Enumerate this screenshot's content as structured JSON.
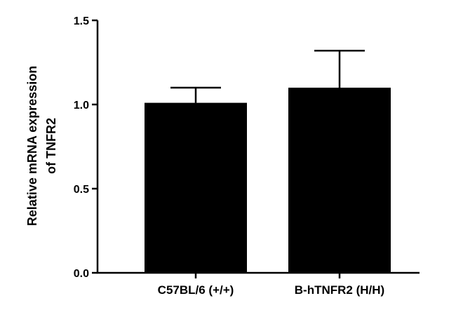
{
  "chart_data": {
    "type": "bar",
    "title": "",
    "xlabel": "",
    "ylabel_lines": [
      "Relative mRNA expression",
      "of TNFR2"
    ],
    "categories": [
      "C57BL/6 (+/+)",
      "B-hTNFR2 (H/H)"
    ],
    "values": [
      1.01,
      1.1
    ],
    "error_upper": [
      0.09,
      0.22
    ],
    "ylim": [
      0,
      1.5
    ],
    "yticks": [
      0.0,
      0.5,
      1.0,
      1.5
    ],
    "ytick_labels": [
      "0.0",
      "0.5",
      "1.0",
      "1.5"
    ],
    "grid": false,
    "legend": "none",
    "bar_color": "#000000"
  }
}
